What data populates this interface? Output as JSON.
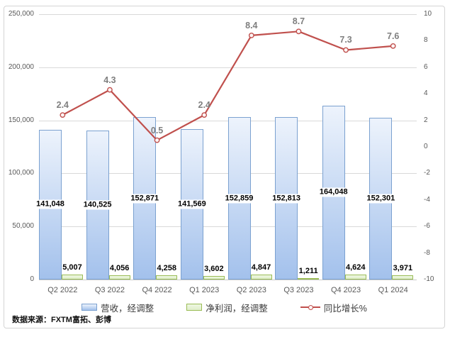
{
  "chart_data": {
    "type": "bar",
    "subtype": "combo-bar-line",
    "categories": [
      "Q2 2022",
      "Q3 2022",
      "Q4 2022",
      "Q1 2023",
      "Q2 2023",
      "Q3 2023",
      "Q4 2023",
      "Q1 2024"
    ],
    "series": [
      {
        "name": "营收，经调整",
        "type": "bar",
        "axis": "left",
        "values": [
          141048,
          140525,
          152871,
          141569,
          152859,
          152813,
          164048,
          152301
        ],
        "labels": [
          "141,048",
          "140,525",
          "152,871",
          "141,569",
          "152,859",
          "152,813",
          "164,048",
          "152,301"
        ]
      },
      {
        "name": "净利润，经调整",
        "type": "bar",
        "axis": "left",
        "values": [
          5007,
          4056,
          4258,
          3602,
          4847,
          1211,
          4624,
          3971
        ],
        "labels": [
          "5,007",
          "4,056",
          "4,258",
          "3,602",
          "4,847",
          "1,211",
          "4,624",
          "3,971"
        ]
      },
      {
        "name": "同比增长%",
        "type": "line",
        "axis": "right",
        "values": [
          2.4,
          4.3,
          0.5,
          2.4,
          8.4,
          8.7,
          7.3,
          7.6
        ],
        "labels": [
          "2.4",
          "4.3",
          "0.5",
          "2.4",
          "8.4",
          "8.7",
          "7.3",
          "7.6"
        ]
      }
    ],
    "left_axis": {
      "min": 0,
      "max": 250000,
      "tick_labels": [
        "250,000",
        "200,000",
        "150,000",
        "100,000",
        "50,000",
        "0"
      ]
    },
    "right_axis": {
      "min": -10,
      "max": 10,
      "tick_labels": [
        "10",
        "8",
        "6",
        "4",
        "2",
        "0",
        "-2",
        "-4",
        "-6",
        "-8",
        "-10"
      ]
    },
    "grid": true,
    "legend_position": "bottom",
    "title": ""
  },
  "legend": {
    "items": [
      {
        "label": "营收，经调整",
        "swatch": "bar-blue"
      },
      {
        "label": "净利润，经调整",
        "swatch": "bar-green"
      },
      {
        "label": "同比增长%",
        "swatch": "line-red"
      }
    ]
  },
  "footer": {
    "source": "数据来源：FXTM富拓、彭博"
  },
  "colors": {
    "revenue_fill_top": "#edf3fc",
    "revenue_fill_bottom": "#a3c1ec",
    "revenue_border": "#7ba1d0",
    "profit_fill": "#dfeecb",
    "profit_border": "#9aబc55",
    "profit_border_hex": "#9abc55",
    "line": "#c0504d",
    "line_marker_fill": "#fdf4f4",
    "line_label_text": "#7f7f7f",
    "grid": "#d9d9d9",
    "axis_text": "#595959"
  }
}
